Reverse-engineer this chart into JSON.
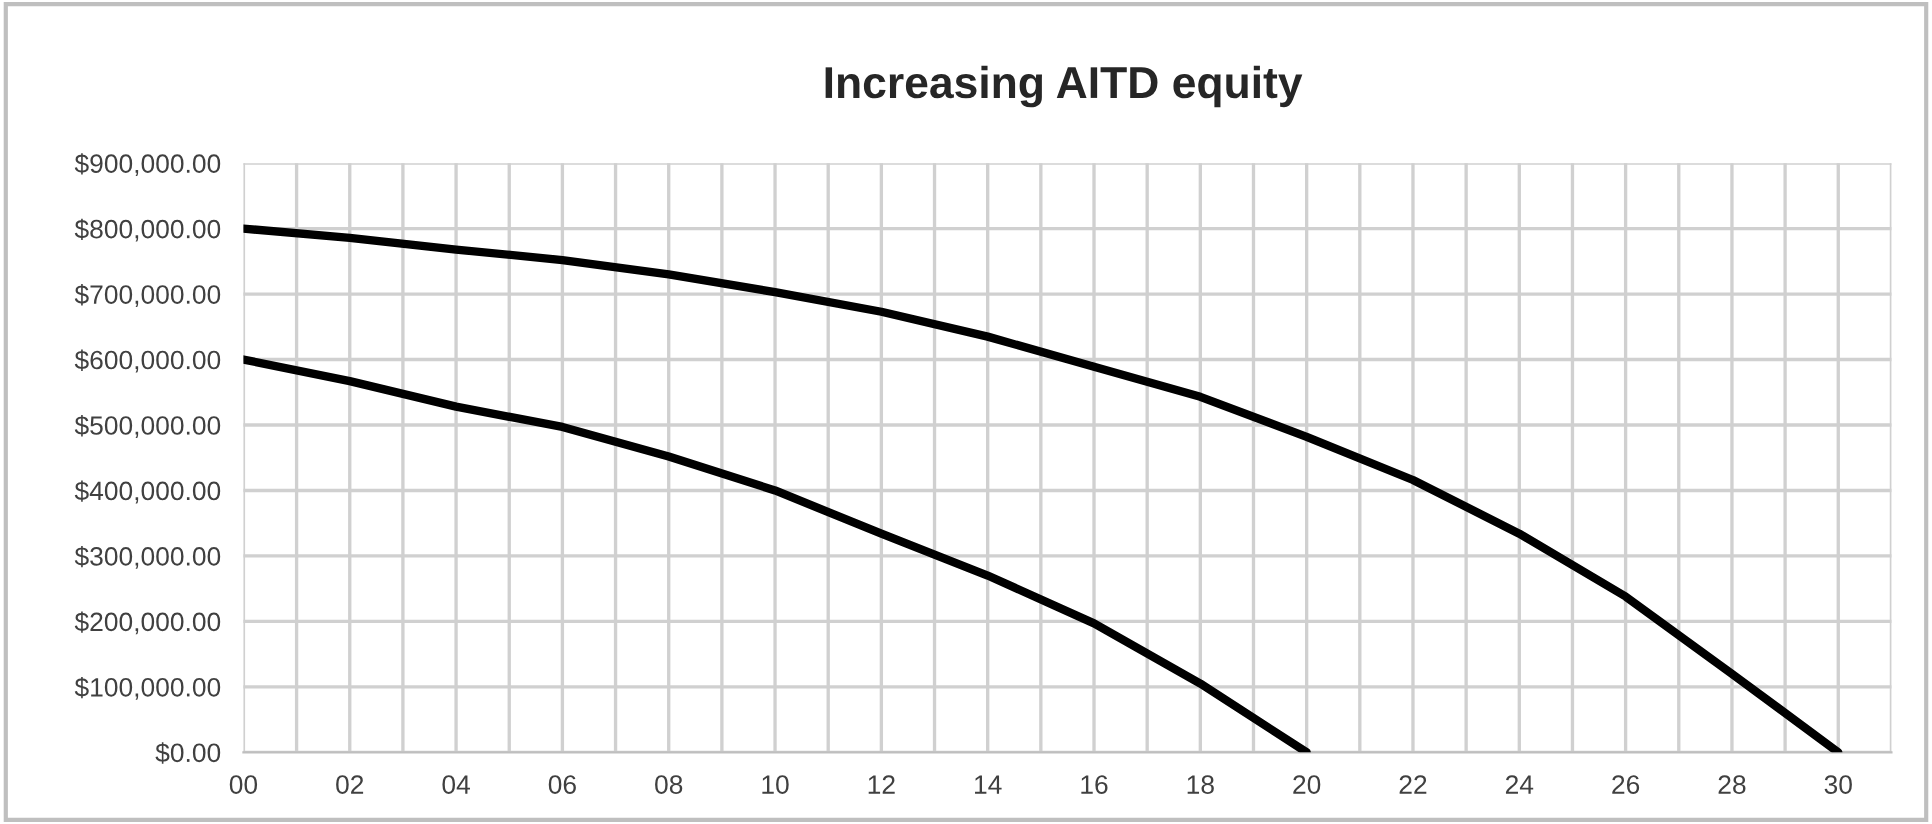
{
  "chart_data": {
    "type": "line",
    "title": "Increasing AITD equity",
    "series": [
      {
        "color": "#000000",
        "x": [
          0,
          2,
          4,
          6,
          8,
          10,
          12,
          14,
          16,
          18,
          20,
          22,
          24,
          26,
          28,
          30
        ],
        "values": [
          800000,
          786000,
          768000,
          752000,
          730000,
          703000,
          673000,
          635000,
          589000,
          543000,
          482000,
          416000,
          334000,
          238000,
          120000,
          0
        ]
      },
      {
        "color": "#000000",
        "x": [
          0,
          2,
          4,
          6,
          8,
          10,
          12,
          14,
          16,
          18,
          20
        ],
        "values": [
          600000,
          567000,
          528000,
          497000,
          452000,
          400000,
          334000,
          270000,
          197000,
          105000,
          0
        ]
      }
    ],
    "xlim": [
      0,
      31
    ],
    "xticks": [
      {
        "value": 0,
        "label": "00"
      },
      {
        "value": 1,
        "label": null
      },
      {
        "value": 2,
        "label": "02"
      },
      {
        "value": 3,
        "label": null
      },
      {
        "value": 4,
        "label": "04"
      },
      {
        "value": 5,
        "label": null
      },
      {
        "value": 6,
        "label": "06"
      },
      {
        "value": 7,
        "label": null
      },
      {
        "value": 8,
        "label": "08"
      },
      {
        "value": 9,
        "label": null
      },
      {
        "value": 10,
        "label": "10"
      },
      {
        "value": 11,
        "label": null
      },
      {
        "value": 12,
        "label": "12"
      },
      {
        "value": 13,
        "label": null
      },
      {
        "value": 14,
        "label": "14"
      },
      {
        "value": 15,
        "label": null
      },
      {
        "value": 16,
        "label": "16"
      },
      {
        "value": 17,
        "label": null
      },
      {
        "value": 18,
        "label": "18"
      },
      {
        "value": 19,
        "label": null
      },
      {
        "value": 20,
        "label": "20"
      },
      {
        "value": 21,
        "label": null
      },
      {
        "value": 22,
        "label": "22"
      },
      {
        "value": 23,
        "label": null
      },
      {
        "value": 24,
        "label": "24"
      },
      {
        "value": 25,
        "label": null
      },
      {
        "value": 26,
        "label": "26"
      },
      {
        "value": 27,
        "label": null
      },
      {
        "value": 28,
        "label": "28"
      },
      {
        "value": 29,
        "label": null
      },
      {
        "value": 30,
        "label": "30"
      },
      {
        "value": 31,
        "label": null
      }
    ],
    "ylim": [
      0,
      900000
    ],
    "yticks": [
      {
        "value": 0,
        "label": "$0.00"
      },
      {
        "value": 100000,
        "label": "$100,000.00"
      },
      {
        "value": 200000,
        "label": "$200,000.00"
      },
      {
        "value": 300000,
        "label": "$300,000.00"
      },
      {
        "value": 400000,
        "label": "$400,000.00"
      },
      {
        "value": 500000,
        "label": "$500,000.00"
      },
      {
        "value": 600000,
        "label": "$600,000.00"
      },
      {
        "value": 700000,
        "label": "$700,000.00"
      },
      {
        "value": 800000,
        "label": "$800,000.00"
      },
      {
        "value": 900000,
        "label": "$900,000.00"
      }
    ],
    "grid": true,
    "legend": false,
    "marker": "none",
    "line_style": "solid"
  }
}
